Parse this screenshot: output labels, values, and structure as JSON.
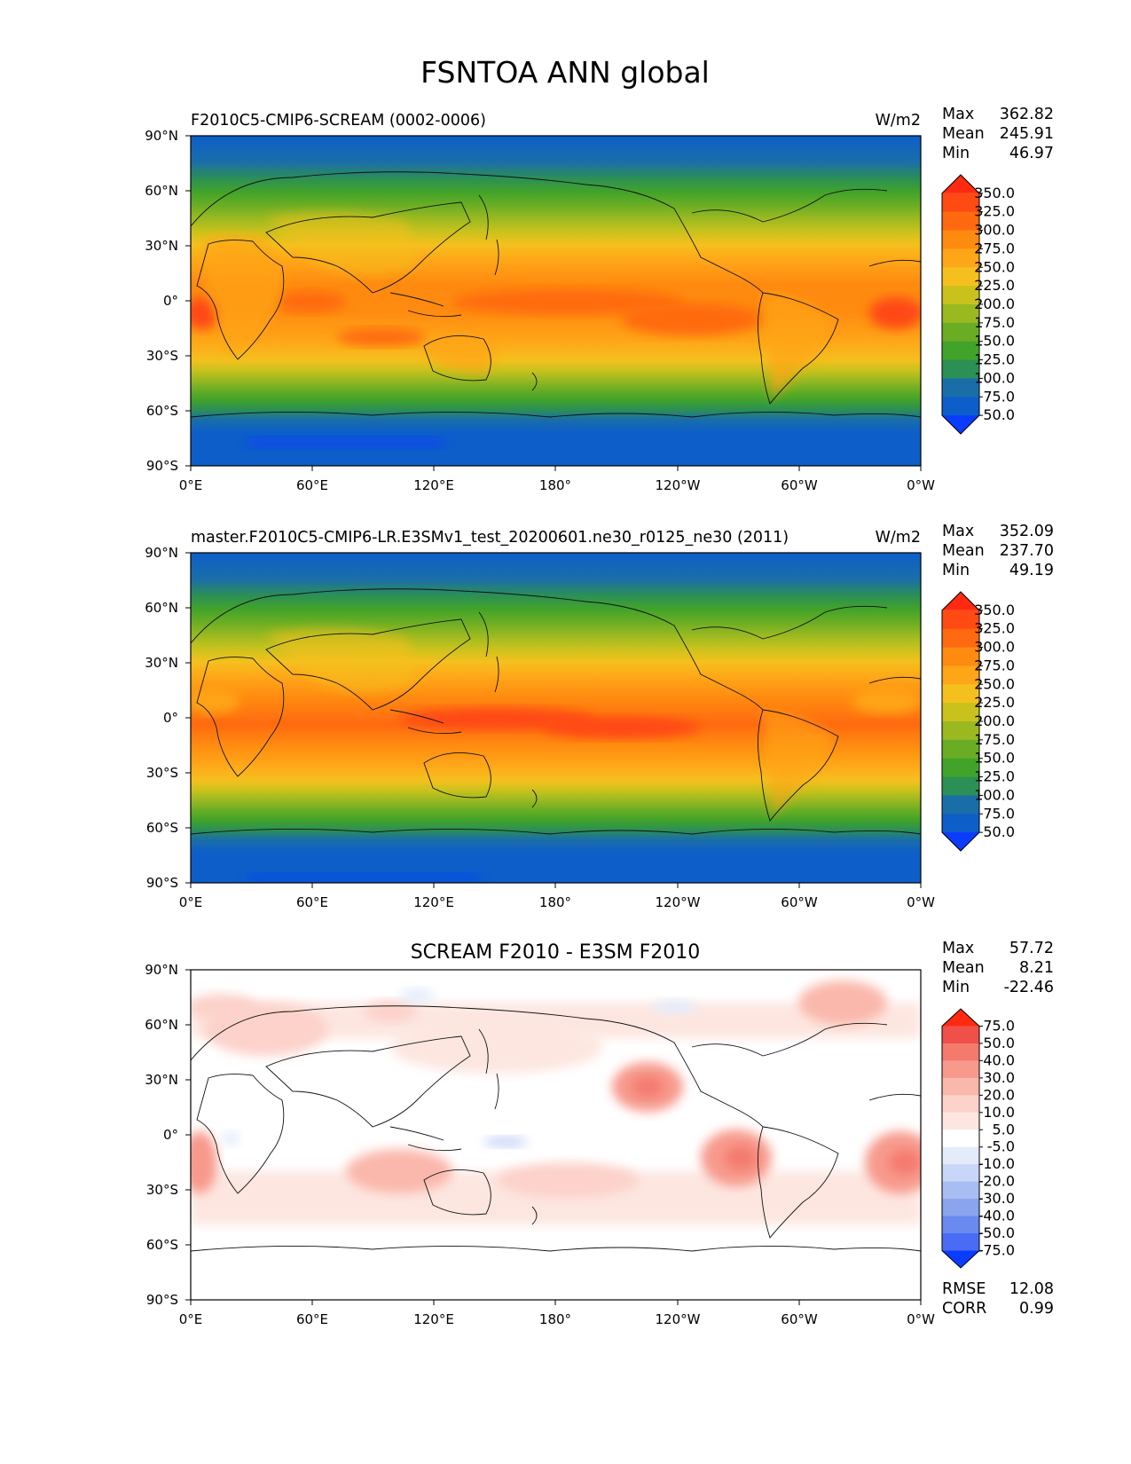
{
  "figure": {
    "title": "FSNTOA ANN global"
  },
  "axes": {
    "lat_labels": [
      "90°N",
      "60°N",
      "30°N",
      "0°",
      "30°S",
      "60°S",
      "90°S"
    ],
    "lon_labels": [
      "0°E",
      "60°E",
      "120°E",
      "180°",
      "120°W",
      "60°W",
      "0°W"
    ]
  },
  "panels": [
    {
      "title_left": "F2010C5-CMIP6-SCREAM (0002-0006)",
      "title_right": "W/m2",
      "title_center": "",
      "stats": [
        {
          "label": "Max",
          "value": "362.82"
        },
        {
          "label": "Mean",
          "value": "245.91"
        },
        {
          "label": "Min",
          "value": "46.97"
        }
      ],
      "colorbar": {
        "levels": [
          "350.0",
          "325.0",
          "300.0",
          "275.0",
          "250.0",
          "225.0",
          "200.0",
          "175.0",
          "150.0",
          "125.0",
          "100.0",
          "75.0",
          "50.0"
        ],
        "colors": [
          "#ff2a10",
          "#ff4a14",
          "#ff6a10",
          "#ff8a10",
          "#ffa518",
          "#f5c01e",
          "#c9c21d",
          "#9ab921",
          "#6aad24",
          "#41a32a",
          "#2c8f55",
          "#1a6ea8",
          "#0d5ec9",
          "#0a3cff"
        ]
      },
      "footer_stats": []
    },
    {
      "title_left": "master.F2010C5-CMIP6-LR.E3SMv1_test_20200601.ne30_r0125_ne30 (2011)",
      "title_right": "W/m2",
      "title_center": "",
      "stats": [
        {
          "label": "Max",
          "value": "352.09"
        },
        {
          "label": "Mean",
          "value": "237.70"
        },
        {
          "label": "Min",
          "value": "49.19"
        }
      ],
      "colorbar": {
        "levels": [
          "350.0",
          "325.0",
          "300.0",
          "275.0",
          "250.0",
          "225.0",
          "200.0",
          "175.0",
          "150.0",
          "125.0",
          "100.0",
          "75.0",
          "50.0"
        ],
        "colors": [
          "#ff2a10",
          "#ff4a14",
          "#ff6a10",
          "#ff8a10",
          "#ffa518",
          "#f5c01e",
          "#c9c21d",
          "#9ab921",
          "#6aad24",
          "#41a32a",
          "#2c8f55",
          "#1a6ea8",
          "#0d5ec9",
          "#0a3cff"
        ]
      },
      "footer_stats": []
    },
    {
      "title_left": "",
      "title_right": "",
      "title_center": "SCREAM F2010 - E3SM F2010",
      "stats": [
        {
          "label": "Max",
          "value": "57.72"
        },
        {
          "label": "Mean",
          "value": "8.21"
        },
        {
          "label": "Min",
          "value": "-22.46"
        }
      ],
      "colorbar": {
        "levels": [
          "75.0",
          "50.0",
          "40.0",
          "30.0",
          "20.0",
          "10.0",
          "5.0",
          "-5.0",
          "-10.0",
          "-20.0",
          "-30.0",
          "-40.0",
          "-50.0",
          "-75.0"
        ],
        "colors": [
          "#ff2a10",
          "#f0504a",
          "#f47a6e",
          "#f79a8c",
          "#fab8ac",
          "#fcd2ca",
          "#fde6e0",
          "#ffffff",
          "#e4ecfb",
          "#c8d6f7",
          "#a8bdf2",
          "#8aa5ee",
          "#6a8af0",
          "#4a6cf5",
          "#0a3cff"
        ]
      },
      "footer_stats": [
        {
          "label": "RMSE",
          "value": "12.08"
        },
        {
          "label": "CORR",
          "value": "0.99"
        }
      ]
    }
  ]
}
